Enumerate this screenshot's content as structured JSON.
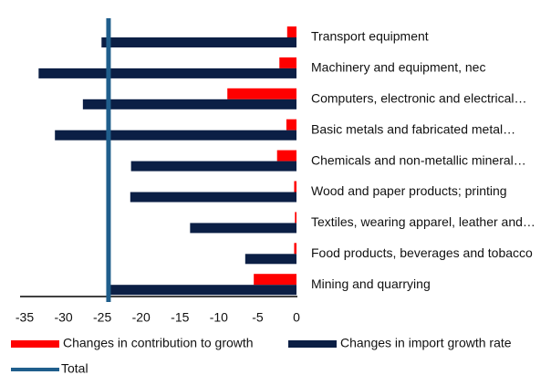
{
  "chart_data": {
    "type": "hbar",
    "categories": [
      "Transport equipment",
      "Machinery and equipment, nec",
      "Computers, electronic and electrical…",
      "Basic metals and fabricated metal…",
      "Chemicals and non-metallic mineral…",
      "Wood and paper products; printing",
      "Textiles, wearing apparel, leather and…",
      "Food products, beverages and tobacco",
      "Mining and quarrying"
    ],
    "series": [
      {
        "name": "Changes in contribution to growth",
        "color": "#ff0000",
        "values": [
          -1.2,
          -2.2,
          -8.9,
          -1.3,
          -2.5,
          -0.3,
          -0.2,
          -0.3,
          -5.5
        ]
      },
      {
        "name": "Changes in import growth rate",
        "color": "#0b1f45",
        "values": [
          -25.1,
          -33.2,
          -27.5,
          -31.1,
          -21.3,
          -21.4,
          -13.7,
          -6.6,
          -24.4
        ]
      }
    ],
    "total": {
      "name": "Total",
      "value": -24.2,
      "color": "#1f5e8c"
    },
    "xlim": [
      -35,
      0
    ],
    "xticks": [
      -35,
      -30,
      -25,
      -20,
      -15,
      -10,
      -5,
      0
    ]
  }
}
